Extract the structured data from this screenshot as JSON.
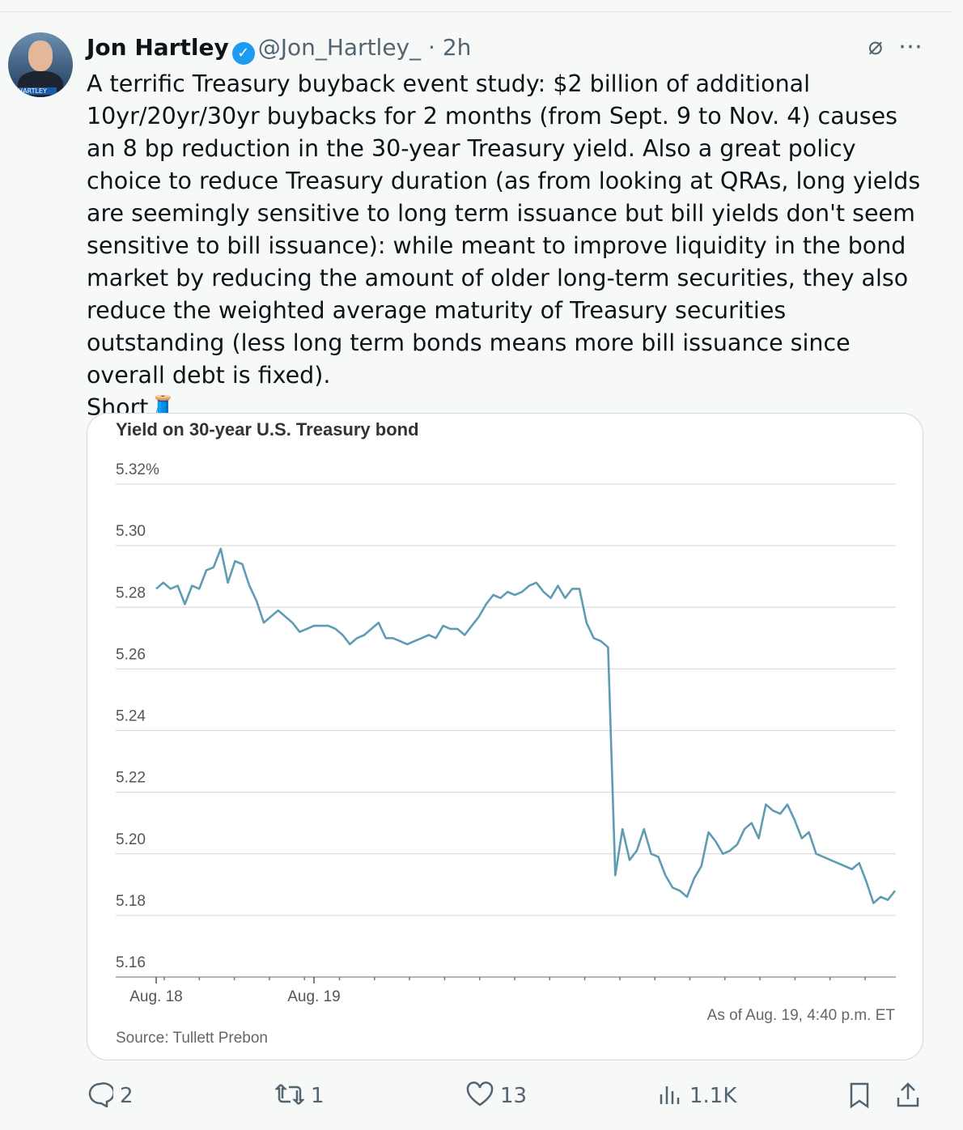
{
  "tweet": {
    "author": "Jon Hartley",
    "handle": "@Jon_Hartley_",
    "time": "· 2h",
    "avatar_label": "HARTLEY",
    "text": [
      "A terrific Treasury buyback event study: $2 billion of additional 10yr/20yr/30yr buybacks for 2 months (from Sept. 9 to Nov. 4) causes an 8 bp reduction in the 30-year Treasury yield. Also a great policy choice to reduce Treasury duration (as from looking at QRAs, long yields are seemingly sensitive to long term issuance but bill yields don't seem sensitive to bill issuance): while meant to improve liquidity in the bond market by reducing the amount of older long-term securities, they also reduce the weighted average maturity of Treasury securities outstanding (less long term bonds means more bill issuance since overall debt is fixed).",
      "Short🧵"
    ],
    "replies": 2,
    "retweets": 1,
    "likes": 13,
    "views": "1.1K"
  },
  "chart_data": {
    "type": "line",
    "title": "Yield on 30-year U.S. Treasury bond",
    "source": "Source: Tullett Prebon",
    "note": "As of Aug. 19, 4:40 p.m. ET",
    "ylim": [
      5.16,
      5.32
    ],
    "yticks": [
      {
        "value": 5.16,
        "label": "5.16"
      },
      {
        "value": 5.18,
        "label": "5.18"
      },
      {
        "value": 5.2,
        "label": "5.20"
      },
      {
        "value": 5.22,
        "label": "5.22"
      },
      {
        "value": 5.24,
        "label": "5.24"
      },
      {
        "value": 5.26,
        "label": "5.26"
      },
      {
        "value": 5.28,
        "label": "5.28"
      },
      {
        "value": 5.3,
        "label": "5.30"
      },
      {
        "value": 5.32,
        "label": "5.32%"
      }
    ],
    "grid": true,
    "categories": [
      "Aug. 18",
      null,
      null,
      null,
      null,
      null,
      null,
      null,
      null,
      null,
      null,
      null,
      null,
      null,
      null,
      null,
      null,
      null,
      null,
      null,
      null,
      null,
      "Aug. 19",
      null,
      null,
      null,
      null,
      null,
      null,
      null,
      null,
      null,
      null,
      null,
      null,
      null,
      null,
      null,
      null,
      null,
      null,
      null,
      null,
      null,
      null,
      null,
      null,
      null,
      null,
      null,
      null,
      null,
      null,
      null,
      null,
      null,
      null,
      null,
      null,
      null,
      null,
      null,
      null,
      null,
      null,
      null,
      null,
      null,
      null,
      null,
      null,
      null,
      null,
      null,
      null,
      null,
      null,
      null,
      null,
      null,
      null,
      null,
      null,
      null,
      null,
      null,
      null,
      null,
      null,
      null,
      null,
      null,
      null,
      null,
      null,
      null,
      null,
      null,
      null,
      null,
      null,
      null,
      null,
      null
    ],
    "series": [
      {
        "color": "#5f9cb3",
        "values": [
          5.286,
          5.288,
          5.286,
          5.287,
          5.281,
          5.287,
          5.286,
          5.292,
          5.293,
          5.299,
          5.288,
          5.295,
          5.294,
          5.287,
          5.282,
          5.275,
          5.277,
          5.279,
          5.277,
          5.275,
          5.272,
          5.273,
          5.274,
          5.274,
          5.274,
          5.273,
          5.271,
          5.268,
          5.27,
          5.271,
          5.273,
          5.275,
          5.27,
          5.27,
          5.269,
          5.268,
          5.269,
          5.27,
          5.271,
          5.27,
          5.274,
          5.273,
          5.273,
          5.271,
          5.274,
          5.277,
          5.281,
          5.284,
          5.283,
          5.285,
          5.284,
          5.285,
          5.287,
          5.288,
          5.285,
          5.283,
          5.287,
          5.283,
          5.286,
          5.286,
          5.275,
          5.27,
          5.269,
          5.267,
          5.193,
          5.208,
          5.198,
          5.201,
          5.208,
          5.2,
          5.199,
          5.193,
          5.189,
          5.188,
          5.186,
          5.192,
          5.196,
          5.207,
          5.204,
          5.2,
          5.201,
          5.203,
          5.208,
          5.21,
          5.205,
          5.216,
          5.214,
          5.213,
          5.216,
          5.211,
          5.205,
          5.207,
          5.2,
          5.199,
          5.198,
          5.197,
          5.196,
          5.195,
          5.197,
          5.191,
          5.184,
          5.186,
          5.185,
          5.188
        ]
      }
    ]
  }
}
